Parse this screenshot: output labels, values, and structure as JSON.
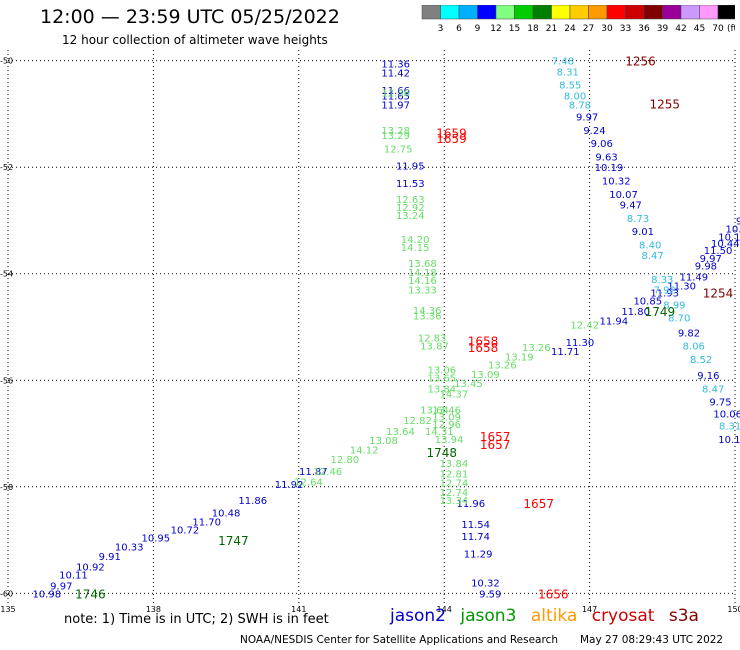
{
  "title": "12:00 — 23:59 UTC 05/25/2022",
  "subtitle": "12 hour collection of altimeter wave heights",
  "colorbar": {
    "labels": [
      "3",
      "6",
      "9",
      "12",
      "15",
      "18",
      "21",
      "24",
      "27",
      "30",
      "33",
      "36",
      "39",
      "42",
      "45",
      "70"
    ],
    "unit": "(ft)",
    "colors": [
      "#808080",
      "#00ffff",
      "#00b0ff",
      "#0000ff",
      "#80ff80",
      "#00cc00",
      "#008000",
      "#ffff00",
      "#ffcc00",
      "#ff9900",
      "#ff0000",
      "#cc0000",
      "#800000",
      "#990099",
      "#cc99ff",
      "#ff99ff",
      "#000000"
    ]
  },
  "footer": {
    "note": "note: 1) Time is in UTC; 2) SWH is in feet",
    "satellites": [
      {
        "name": "jason2",
        "color": "#0000cc"
      },
      {
        "name": "jason3",
        "color": "#009900"
      },
      {
        "name": "altika",
        "color": "#ff9900"
      },
      {
        "name": "cryosat",
        "color": "#cc0000"
      },
      {
        "name": "s3a",
        "color": "#800000"
      }
    ],
    "credit": "NOAA/NESDIS Center for Satellite Applications and Research",
    "timestamp": "May 27 08:29:43 UTC 2022"
  },
  "chart_data": {
    "type": "scatter",
    "title": "12:00 — 23:59 UTC 05/25/2022",
    "xlabel": "",
    "ylabel": "",
    "xlim": [
      135,
      150
    ],
    "ylim": [
      -60.2,
      -49.8
    ],
    "x_ticks": [
      {
        "v": 135,
        "label": "135"
      },
      {
        "v": 138,
        "label": "138"
      },
      {
        "v": 141,
        "label": "141"
      },
      {
        "v": 144,
        "label": "144"
      },
      {
        "v": 147,
        "label": "147"
      },
      {
        "v": 150,
        "label": "150"
      }
    ],
    "y_ticks": [
      {
        "v": -50,
        "label": "-50"
      },
      {
        "v": -52,
        "label": "-52"
      },
      {
        "v": -54,
        "label": "-54"
      },
      {
        "v": -56,
        "label": "-56"
      },
      {
        "v": -58,
        "label": "-58"
      },
      {
        "v": -60,
        "label": "-60"
      }
    ],
    "grid": true,
    "series": [
      {
        "name": "jason2",
        "points": [
          {
            "x": 143.0,
            "y": -50.05,
            "label": "11.36",
            "color": "#0000cc"
          },
          {
            "x": 143.0,
            "y": -50.22,
            "label": "11.42",
            "color": "#0000cc"
          },
          {
            "x": 143.0,
            "y": -50.55,
            "label": "11.66",
            "color": "#0000cc"
          },
          {
            "x": 143.0,
            "y": -50.65,
            "label": "11.65",
            "color": "#0000cc"
          },
          {
            "x": 143.0,
            "y": -50.82,
            "label": "11.97",
            "color": "#0000cc"
          },
          {
            "x": 143.3,
            "y": -51.97,
            "label": "11.95",
            "color": "#0000cc"
          },
          {
            "x": 143.3,
            "y": -52.3,
            "label": "11.53",
            "color": "#0000cc"
          },
          {
            "x": 144.55,
            "y": -58.3,
            "label": "11.96",
            "color": "#0000cc"
          },
          {
            "x": 144.65,
            "y": -58.7,
            "label": "11.54",
            "color": "#0000cc"
          },
          {
            "x": 144.65,
            "y": -58.92,
            "label": "11.74",
            "color": "#0000cc"
          },
          {
            "x": 144.7,
            "y": -59.25,
            "label": "11.29",
            "color": "#0000cc"
          },
          {
            "x": 144.85,
            "y": -59.8,
            "label": "10.32",
            "color": "#0000cc"
          },
          {
            "x": 144.95,
            "y": -60.0,
            "label": "9.59",
            "color": "#0000cc"
          }
        ]
      },
      {
        "name": "jason2-ascending",
        "points": [
          {
            "x": 135.8,
            "y": -60.0,
            "label": "10.98",
            "color": "#0000cc"
          },
          {
            "x": 136.1,
            "y": -59.85,
            "label": "9.97",
            "color": "#0000cc"
          },
          {
            "x": 136.35,
            "y": -59.65,
            "label": "10.11",
            "color": "#0000cc"
          },
          {
            "x": 136.7,
            "y": -59.5,
            "label": "10.92",
            "color": "#0000cc"
          },
          {
            "x": 137.1,
            "y": -59.3,
            "label": "9.91",
            "color": "#0000cc"
          },
          {
            "x": 137.5,
            "y": -59.12,
            "label": "10.33",
            "color": "#0000cc"
          },
          {
            "x": 138.05,
            "y": -58.95,
            "label": "10.95",
            "color": "#0000cc"
          },
          {
            "x": 138.65,
            "y": -58.8,
            "label": "10.72",
            "color": "#0000cc"
          },
          {
            "x": 139.1,
            "y": -58.65,
            "label": "11.70",
            "color": "#0000cc"
          },
          {
            "x": 139.5,
            "y": -58.48,
            "label": "10.48",
            "color": "#0000cc"
          },
          {
            "x": 140.05,
            "y": -58.25,
            "label": "11.86",
            "color": "#0000cc"
          },
          {
            "x": 140.8,
            "y": -57.95,
            "label": "11.92",
            "color": "#0000cc"
          },
          {
            "x": 141.3,
            "y": -57.7,
            "label": "11.87",
            "color": "#0000cc"
          },
          {
            "x": 146.5,
            "y": -55.45,
            "label": "11.71",
            "color": "#0000cc"
          },
          {
            "x": 146.8,
            "y": -55.28,
            "label": "11.30",
            "color": "#0000cc"
          },
          {
            "x": 147.5,
            "y": -54.88,
            "label": "11.94",
            "color": "#0000cc"
          },
          {
            "x": 147.95,
            "y": -54.7,
            "label": "11.80",
            "color": "#0000cc"
          },
          {
            "x": 148.2,
            "y": -54.5,
            "label": "10.85",
            "color": "#0000cc"
          },
          {
            "x": 148.55,
            "y": -54.35,
            "label": "11.93",
            "color": "#0000cc"
          },
          {
            "x": 148.9,
            "y": -54.22,
            "label": "11.30",
            "color": "#0000cc"
          },
          {
            "x": 149.15,
            "y": -54.05,
            "label": "11.49",
            "color": "#0000cc"
          },
          {
            "x": 149.4,
            "y": -53.85,
            "label": "9.98",
            "color": "#0000cc"
          },
          {
            "x": 149.5,
            "y": -53.7,
            "label": "9.97",
            "color": "#0000cc"
          },
          {
            "x": 149.65,
            "y": -53.55,
            "label": "11.50",
            "color": "#0000cc"
          },
          {
            "x": 149.8,
            "y": -53.42,
            "label": "10.44",
            "color": "#0000cc"
          },
          {
            "x": 149.95,
            "y": -53.3,
            "label": "10.11",
            "color": "#0000cc"
          },
          {
            "x": 150.1,
            "y": -53.15,
            "label": "10.53",
            "color": "#0000cc"
          },
          {
            "x": 150.25,
            "y": -53.0,
            "label": "9.96",
            "color": "#0000cc"
          },
          {
            "x": 150.4,
            "y": -52.85,
            "label": "9.77",
            "color": "#0000cc"
          }
        ]
      },
      {
        "name": "jason3",
        "points": [
          {
            "x": 143.0,
            "y": -50.6,
            "label": "12.36",
            "color": "#66dd66"
          },
          {
            "x": 143.0,
            "y": -51.3,
            "label": "13.28",
            "color": "#66dd66"
          },
          {
            "x": 143.0,
            "y": -51.4,
            "label": "13.29",
            "color": "#66dd66"
          },
          {
            "x": 143.05,
            "y": -51.65,
            "label": "12.75",
            "color": "#66dd66"
          },
          {
            "x": 143.3,
            "y": -52.6,
            "label": "12.63",
            "color": "#66dd66"
          },
          {
            "x": 143.3,
            "y": -52.75,
            "label": "12.92",
            "color": "#66dd66"
          },
          {
            "x": 143.3,
            "y": -52.9,
            "label": "13.24",
            "color": "#66dd66"
          },
          {
            "x": 143.4,
            "y": -53.35,
            "label": "14.20",
            "color": "#66dd66"
          },
          {
            "x": 143.4,
            "y": -53.5,
            "label": "14.15",
            "color": "#66dd66"
          },
          {
            "x": 143.55,
            "y": -53.8,
            "label": "13.68",
            "color": "#66dd66"
          },
          {
            "x": 143.55,
            "y": -53.97,
            "label": "14.18",
            "color": "#66dd66"
          },
          {
            "x": 143.55,
            "y": -54.12,
            "label": "14.16",
            "color": "#66dd66"
          },
          {
            "x": 143.55,
            "y": -54.3,
            "label": "13.33",
            "color": "#66dd66"
          },
          {
            "x": 143.65,
            "y": -54.68,
            "label": "14.36",
            "color": "#66dd66"
          },
          {
            "x": 143.65,
            "y": -54.78,
            "label": "13.36",
            "color": "#66dd66"
          },
          {
            "x": 143.75,
            "y": -55.2,
            "label": "12.83",
            "color": "#66dd66"
          },
          {
            "x": 143.8,
            "y": -55.35,
            "label": "13.87",
            "color": "#66dd66"
          },
          {
            "x": 143.95,
            "y": -55.8,
            "label": "13.06",
            "color": "#66dd66"
          },
          {
            "x": 143.95,
            "y": -55.95,
            "label": "13.65",
            "color": "#66dd66"
          },
          {
            "x": 143.95,
            "y": -56.15,
            "label": "13.84",
            "color": "#66dd66"
          },
          {
            "x": 144.05,
            "y": -56.55,
            "label": "13.46",
            "color": "#66dd66"
          },
          {
            "x": 144.05,
            "y": -56.68,
            "label": "13.09",
            "color": "#66dd66"
          },
          {
            "x": 144.05,
            "y": -56.82,
            "label": "12.96",
            "color": "#66dd66"
          },
          {
            "x": 143.9,
            "y": -56.95,
            "label": "14.31",
            "color": "#66dd66"
          },
          {
            "x": 144.1,
            "y": -57.1,
            "label": "13.94",
            "color": "#66dd66"
          },
          {
            "x": 144.2,
            "y": -57.55,
            "label": "13.84",
            "color": "#66dd66"
          },
          {
            "x": 144.2,
            "y": -57.75,
            "label": "12.81",
            "color": "#66dd66"
          },
          {
            "x": 144.2,
            "y": -57.92,
            "label": "12.74",
            "color": "#66dd66"
          },
          {
            "x": 144.2,
            "y": -58.1,
            "label": "12.74",
            "color": "#66dd66"
          },
          {
            "x": 144.2,
            "y": -58.25,
            "label": "13.34",
            "color": "#66dd66"
          },
          {
            "x": 141.2,
            "y": -57.9,
            "label": "12.64",
            "color": "#66dd66"
          },
          {
            "x": 141.6,
            "y": -57.7,
            "label": "12.46",
            "color": "#66dd66"
          },
          {
            "x": 141.95,
            "y": -57.48,
            "label": "12.80",
            "color": "#66dd66"
          },
          {
            "x": 142.35,
            "y": -57.3,
            "label": "14.12",
            "color": "#66dd66"
          },
          {
            "x": 142.75,
            "y": -57.12,
            "label": "13.08",
            "color": "#66dd66"
          },
          {
            "x": 143.1,
            "y": -56.95,
            "label": "13.64",
            "color": "#66dd66"
          },
          {
            "x": 143.45,
            "y": -56.75,
            "label": "12.82",
            "color": "#66dd66"
          },
          {
            "x": 143.8,
            "y": -56.55,
            "label": "13.64",
            "color": "#66dd66"
          },
          {
            "x": 144.2,
            "y": -56.25,
            "label": "14.37",
            "color": "#66dd66"
          },
          {
            "x": 144.5,
            "y": -56.05,
            "label": "13.45",
            "color": "#66dd66"
          },
          {
            "x": 144.85,
            "y": -55.88,
            "label": "13.09",
            "color": "#66dd66"
          },
          {
            "x": 145.2,
            "y": -55.7,
            "label": "13.26",
            "color": "#66dd66"
          },
          {
            "x": 145.55,
            "y": -55.55,
            "label": "13.19",
            "color": "#66dd66"
          },
          {
            "x": 145.9,
            "y": -55.38,
            "label": "13.26",
            "color": "#66dd66"
          },
          {
            "x": 146.9,
            "y": -54.95,
            "label": "12.42",
            "color": "#66dd66"
          }
        ]
      },
      {
        "name": "s3a",
        "points": [
          {
            "x": 146.45,
            "y": -50.0,
            "label": "7.48",
            "color": "#33bbdd"
          },
          {
            "x": 146.55,
            "y": -50.2,
            "label": "8.31",
            "color": "#33bbdd"
          },
          {
            "x": 146.6,
            "y": -50.45,
            "label": "8.55",
            "color": "#33bbdd"
          },
          {
            "x": 146.7,
            "y": -50.65,
            "label": "8.00",
            "color": "#33bbdd"
          },
          {
            "x": 146.8,
            "y": -50.82,
            "label": "8.78",
            "color": "#33bbdd"
          },
          {
            "x": 146.95,
            "y": -51.05,
            "label": "9.97",
            "color": "#0000cc"
          },
          {
            "x": 147.1,
            "y": -51.3,
            "label": "9.24",
            "color": "#0000cc"
          },
          {
            "x": 147.25,
            "y": -51.55,
            "label": "9.06",
            "color": "#0000cc"
          },
          {
            "x": 147.35,
            "y": -51.8,
            "label": "9.63",
            "color": "#0000cc"
          },
          {
            "x": 147.4,
            "y": -52.0,
            "label": "10.19",
            "color": "#0000cc"
          },
          {
            "x": 147.55,
            "y": -52.25,
            "label": "10.32",
            "color": "#0000cc"
          },
          {
            "x": 147.7,
            "y": -52.5,
            "label": "10.07",
            "color": "#0000cc"
          },
          {
            "x": 147.85,
            "y": -52.7,
            "label": "9.47",
            "color": "#0000cc"
          },
          {
            "x": 148.0,
            "y": -52.95,
            "label": "8.73",
            "color": "#33bbdd"
          },
          {
            "x": 148.1,
            "y": -53.2,
            "label": "9.01",
            "color": "#0000cc"
          },
          {
            "x": 148.25,
            "y": -53.45,
            "label": "8.40",
            "color": "#33bbdd"
          },
          {
            "x": 148.3,
            "y": -53.65,
            "label": "8.47",
            "color": "#33bbdd"
          },
          {
            "x": 148.5,
            "y": -54.1,
            "label": "8.33",
            "color": "#33bbdd"
          },
          {
            "x": 148.55,
            "y": -54.3,
            "label": "7.92",
            "color": "#33bbdd"
          },
          {
            "x": 148.75,
            "y": -54.58,
            "label": "8.99",
            "color": "#33bbdd"
          },
          {
            "x": 148.85,
            "y": -54.82,
            "label": "8.70",
            "color": "#33bbdd"
          },
          {
            "x": 149.05,
            "y": -55.1,
            "label": "9.82",
            "color": "#0000cc"
          },
          {
            "x": 149.15,
            "y": -55.35,
            "label": "8.06",
            "color": "#33bbdd"
          },
          {
            "x": 149.3,
            "y": -55.6,
            "label": "8.52",
            "color": "#33bbdd"
          },
          {
            "x": 149.45,
            "y": -55.9,
            "label": "9.16",
            "color": "#0000cc"
          },
          {
            "x": 149.55,
            "y": -56.15,
            "label": "8.47",
            "color": "#33bbdd"
          },
          {
            "x": 149.7,
            "y": -56.4,
            "label": "9.75",
            "color": "#0000cc"
          },
          {
            "x": 149.85,
            "y": -56.62,
            "label": "10.06",
            "color": "#0000cc"
          },
          {
            "x": 149.9,
            "y": -56.85,
            "label": "8.31",
            "color": "#33bbdd"
          },
          {
            "x": 149.95,
            "y": -57.1,
            "label": "10.10",
            "color": "#0000cc"
          }
        ]
      }
    ],
    "time_labels": [
      {
        "x": 144.15,
        "y": -51.35,
        "label": "1659",
        "color": "#ff0000"
      },
      {
        "x": 144.15,
        "y": -51.45,
        "label": "1659",
        "color": "#ff0000"
      },
      {
        "x": 148.05,
        "y": -50.0,
        "label": "1256",
        "color": "#800000"
      },
      {
        "x": 148.55,
        "y": -50.8,
        "label": "1255",
        "color": "#800000"
      },
      {
        "x": 149.65,
        "y": -54.35,
        "label": "1254",
        "color": "#800000"
      },
      {
        "x": 144.8,
        "y": -55.25,
        "label": "1658",
        "color": "#ff0000"
      },
      {
        "x": 144.8,
        "y": -55.38,
        "label": "1658",
        "color": "#ff0000"
      },
      {
        "x": 145.05,
        "y": -57.05,
        "label": "1657",
        "color": "#ff0000"
      },
      {
        "x": 145.05,
        "y": -57.2,
        "label": "1657",
        "color": "#ff0000"
      },
      {
        "x": 145.95,
        "y": -58.3,
        "label": "1657",
        "color": "#ff0000"
      },
      {
        "x": 146.25,
        "y": -60.0,
        "label": "1656",
        "color": "#ff0000"
      },
      {
        "x": 143.95,
        "y": -57.35,
        "label": "1748",
        "color": "#006600"
      },
      {
        "x": 148.45,
        "y": -54.7,
        "label": "1749",
        "color": "#006600"
      },
      {
        "x": 139.65,
        "y": -59.0,
        "label": "1747",
        "color": "#006600"
      },
      {
        "x": 136.7,
        "y": -60.0,
        "label": "1746",
        "color": "#006600"
      }
    ]
  }
}
